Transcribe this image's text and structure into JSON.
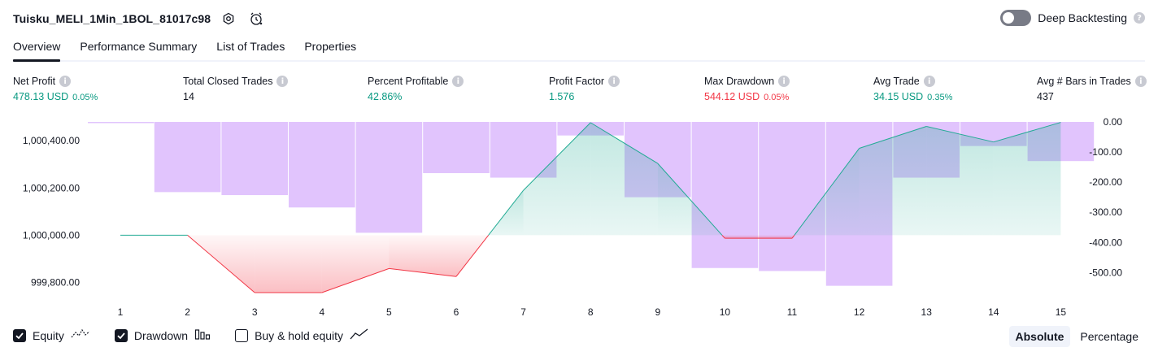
{
  "header": {
    "strategy_title": "Tuisku_MELI_1Min_1BOL_81017c98",
    "deep_backtesting_label": "Deep Backtesting",
    "deep_backtesting_enabled": false
  },
  "tabs": [
    {
      "label": "Overview",
      "active": true
    },
    {
      "label": "Performance Summary",
      "active": false
    },
    {
      "label": "List of Trades",
      "active": false
    },
    {
      "label": "Properties",
      "active": false
    }
  ],
  "metrics": {
    "net_profit": {
      "label": "Net Profit",
      "value": "478.13 USD",
      "pct": "0.05%"
    },
    "total_closed_trades": {
      "label": "Total Closed Trades",
      "value": "14"
    },
    "percent_profitable": {
      "label": "Percent Profitable",
      "value": "42.86%"
    },
    "profit_factor": {
      "label": "Profit Factor",
      "value": "1.576"
    },
    "max_drawdown": {
      "label": "Max Drawdown",
      "value": "544.12 USD",
      "pct": "0.05%"
    },
    "avg_trade": {
      "label": "Avg Trade",
      "value": "34.15 USD",
      "pct": "0.35%"
    },
    "avg_bars": {
      "label": "Avg # Bars in Trades",
      "value": "437"
    }
  },
  "colors": {
    "green": "#089981",
    "red": "#f23645",
    "drawdown_bar": "#e1c4fd",
    "equity_line_up": "#22ab94",
    "equity_line_down": "#f23645",
    "text": "#131722"
  },
  "chart_data": {
    "type": "line",
    "x": [
      1,
      2,
      3,
      4,
      5,
      6,
      7,
      8,
      9,
      10,
      11,
      12,
      13,
      14,
      15
    ],
    "left_axis": {
      "tick_labels": [
        "1,000,400.00",
        "1,000,200.00",
        "1,000,000.00",
        "999,800.00"
      ],
      "ticks": [
        1000400,
        1000200,
        1000000,
        999800
      ],
      "ylim": [
        999750,
        1000480
      ]
    },
    "right_axis": {
      "tick_labels": [
        "0.00",
        "-100.00",
        "-200.00",
        "-300.00",
        "-400.00",
        "-500.00"
      ],
      "ticks": [
        0,
        -100,
        -200,
        -300,
        -400,
        -500
      ],
      "ylim": [
        -572,
        0
      ]
    },
    "series": [
      {
        "type": "line",
        "values": [
          1000000,
          1000000,
          999757,
          999757,
          999859,
          999825,
          1000190,
          1000477,
          1000304,
          999987,
          999987,
          1000368,
          1000461,
          1000395,
          1000478
        ]
      },
      {
        "type": "bar",
        "values": [
          0,
          -233,
          -243,
          -284,
          -368,
          -170,
          -185,
          -45,
          -250,
          -485,
          -495,
          -544,
          -185,
          -80,
          -130
        ]
      }
    ],
    "grid": false,
    "baseline": 1000000
  },
  "legend": [
    {
      "label": "Equity",
      "checked": true,
      "icon": "equity-line-icon"
    },
    {
      "label": "Drawdown",
      "checked": true,
      "icon": "drawdown-bars-icon"
    },
    {
      "label": "Buy & hold equity",
      "checked": false,
      "icon": "buy-hold-line-icon"
    }
  ],
  "mode": {
    "absolute_label": "Absolute",
    "percentage_label": "Percentage",
    "selected": "Absolute"
  }
}
